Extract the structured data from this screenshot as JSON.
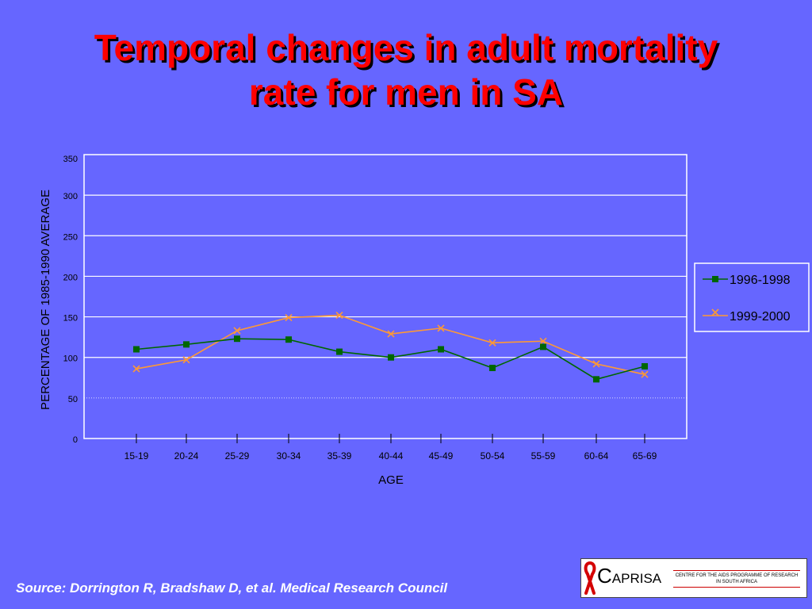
{
  "slide": {
    "title_line1": "Temporal changes in adult mortality",
    "title_line2": "rate for men in SA",
    "source": "Source: Dorrington R, Bradshaw D, et al.  Medical Research Council"
  },
  "logo": {
    "name_initial": "C",
    "name_rest": "APRISA",
    "tagline": "CENTRE FOR THE AIDS PROGRAMME OF RESEARCH IN SOUTH AFRICA"
  },
  "colors": {
    "background": "#6666ff",
    "title": "#ff0000",
    "series_1996": "#006600",
    "series_1999": "#ff9933"
  },
  "chart_data": {
    "type": "line",
    "title": "",
    "xlabel": "AGE",
    "ylabel": "PERCENTAGE OF 1985-1990 AVERAGE",
    "ylim": [
      0,
      350
    ],
    "yticks": [
      0,
      50,
      100,
      150,
      200,
      250,
      300,
      350
    ],
    "grid": true,
    "legend_position": "right",
    "categories": [
      "15-19",
      "20-24",
      "25-29",
      "30-34",
      "35-39",
      "40-44",
      "45-49",
      "50-54",
      "55-59",
      "60-64",
      "65-69"
    ],
    "series": [
      {
        "name": "1996-1998",
        "marker": "square",
        "color": "#006600",
        "values": [
          110,
          116,
          123,
          122,
          107,
          100,
          110,
          87,
          113,
          73,
          89
        ]
      },
      {
        "name": "1999-2000",
        "marker": "x",
        "color": "#ff9933",
        "values": [
          86,
          97,
          133,
          149,
          152,
          129,
          136,
          118,
          120,
          92,
          79
        ]
      }
    ]
  }
}
